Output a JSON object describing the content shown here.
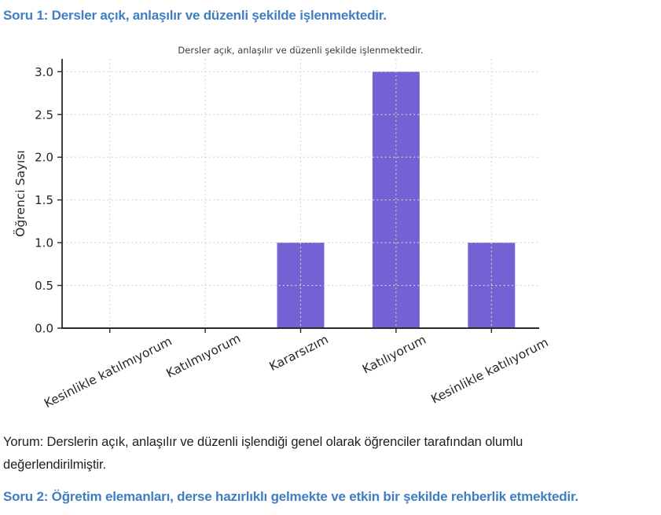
{
  "document": {
    "question1": "Soru 1: Dersler açık, anlaşılır ve düzenli şekilde işlenmektedir.",
    "comment": "Yorum: Derslerin açık, anlaşılır ve düzenli işlendiği genel olarak öğrenciler tarafından olumlu değerlendirilmiştir.",
    "question2": "Soru 2: Öğretim elemanları, derse hazırlıklı gelmekte ve etkin bir şekilde rehberlik etmektedir.",
    "heading_color": "#3E7EC1",
    "body_text_color": "#1F1F1F"
  },
  "chart_data": {
    "type": "bar",
    "title": "Dersler açık, anlaşılır ve düzenli şekilde işlenmektedir.",
    "categories": [
      "Kesinlikle katılmıyorum",
      "Katılmıyorum",
      "Kararsızım",
      "Katılıyorum",
      "Kesinlikle katılıyorum"
    ],
    "values": [
      0,
      0,
      1,
      3,
      1
    ],
    "xlabel": "",
    "ylabel": "Öğrenci Sayısı",
    "yticks": [
      0.0,
      0.5,
      1.0,
      1.5,
      2.0,
      2.5,
      3.0
    ],
    "ytick_decimals": 1,
    "ylim": [
      0,
      3.15
    ],
    "grid": true,
    "grid_style": "dashed",
    "legend": null,
    "bar_color": "#7262D4",
    "grid_color": "#D4D4D4",
    "axis_color": "#2B2B2B",
    "tick_text_color": "#262626",
    "title_color": "#3A3A3A",
    "xtick_rotation_deg": 27
  }
}
